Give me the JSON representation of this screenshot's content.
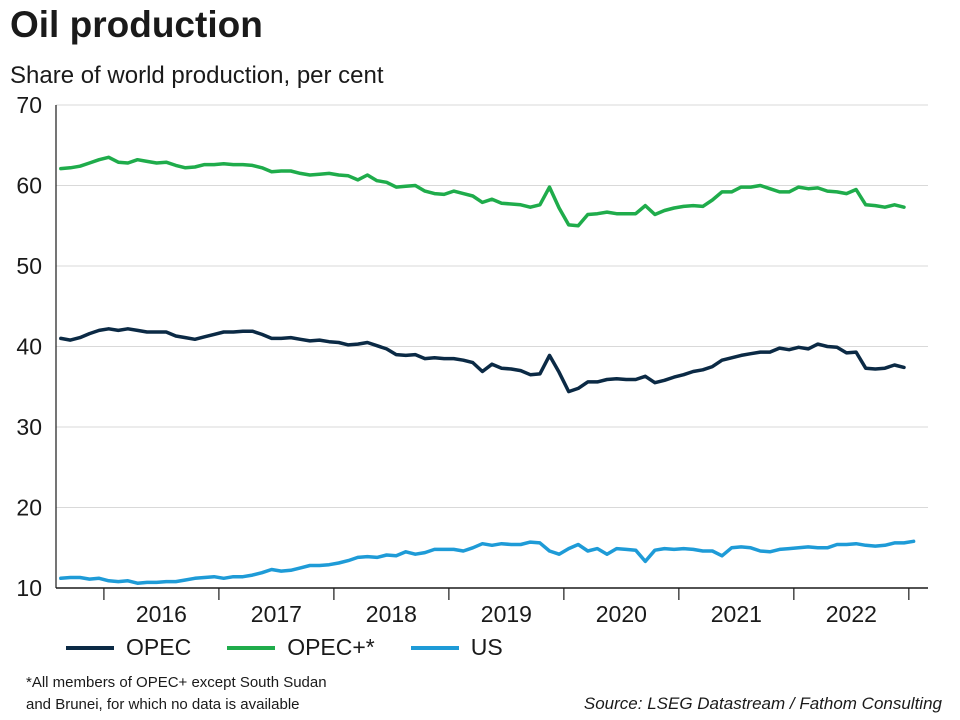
{
  "header": {
    "title": "Oil production",
    "subtitle": "Share of world production, per cent"
  },
  "legend": [
    {
      "label": "OPEC",
      "color": "#0b2a45"
    },
    {
      "label": "OPEC+*",
      "color": "#1fac4b"
    },
    {
      "label": "US",
      "color": "#1e9bd7"
    }
  ],
  "footnote": {
    "line1": "*All members of OPEC+ except South Sudan",
    "line2": "and Brunei, for which no data is available"
  },
  "source": "Source: LSEG Datastream / Fathom Consulting",
  "chart_data": {
    "type": "line",
    "title": "Oil production",
    "subtitle": "Share of world production, per cent",
    "x_start": "2015-08",
    "frequency": "monthly",
    "xlim": [
      "2015-08",
      "2023-02"
    ],
    "ylim": [
      10,
      70
    ],
    "yticks": [
      10,
      20,
      30,
      40,
      50,
      60,
      70
    ],
    "xtick_labels": [
      "2016",
      "2017",
      "2018",
      "2019",
      "2020",
      "2021",
      "2022"
    ],
    "grid": true,
    "legend_position": "bottom",
    "series": [
      {
        "name": "OPEC",
        "color": "#0b2a45",
        "values": [
          41.0,
          40.8,
          41.1,
          41.6,
          42.0,
          42.2,
          42.0,
          42.2,
          42.0,
          41.8,
          41.8,
          41.8,
          41.3,
          41.1,
          40.9,
          41.2,
          41.5,
          41.8,
          41.8,
          41.9,
          41.9,
          41.5,
          41.0,
          41.0,
          41.1,
          40.9,
          40.7,
          40.8,
          40.6,
          40.5,
          40.2,
          40.3,
          40.5,
          40.1,
          39.7,
          39.0,
          38.9,
          39.0,
          38.5,
          38.6,
          38.5,
          38.5,
          38.3,
          38.0,
          36.9,
          37.8,
          37.3,
          37.2,
          37.0,
          36.5,
          36.6,
          38.9,
          36.8,
          34.4,
          34.8,
          35.6,
          35.6,
          35.9,
          36.0,
          35.9,
          35.9,
          36.3,
          35.5,
          35.8,
          36.2,
          36.5,
          36.9,
          37.1,
          37.5,
          38.3,
          38.6,
          38.9,
          39.1,
          39.3,
          39.3,
          39.8,
          39.6,
          39.9,
          39.7,
          40.3,
          40.0,
          39.9,
          39.2,
          39.3,
          37.3,
          37.2,
          37.3,
          37.7,
          37.4
        ]
      },
      {
        "name": "OPEC+*",
        "color": "#1fac4b",
        "values": [
          62.1,
          62.2,
          62.4,
          62.8,
          63.2,
          63.5,
          62.9,
          62.8,
          63.2,
          63.0,
          62.8,
          62.9,
          62.5,
          62.2,
          62.3,
          62.6,
          62.6,
          62.7,
          62.6,
          62.6,
          62.5,
          62.2,
          61.7,
          61.8,
          61.8,
          61.5,
          61.3,
          61.4,
          61.5,
          61.3,
          61.2,
          60.7,
          61.3,
          60.6,
          60.4,
          59.8,
          59.9,
          60.0,
          59.3,
          59.0,
          58.9,
          59.3,
          59.0,
          58.7,
          57.9,
          58.3,
          57.8,
          57.7,
          57.6,
          57.3,
          57.6,
          59.8,
          57.2,
          55.1,
          55.0,
          56.4,
          56.5,
          56.7,
          56.5,
          56.5,
          56.5,
          57.5,
          56.4,
          56.9,
          57.2,
          57.4,
          57.5,
          57.4,
          58.2,
          59.2,
          59.2,
          59.8,
          59.8,
          60.0,
          59.6,
          59.2,
          59.2,
          59.8,
          59.6,
          59.7,
          59.3,
          59.2,
          59.0,
          59.5,
          57.6,
          57.5,
          57.3,
          57.6,
          57.3
        ]
      },
      {
        "name": "US",
        "color": "#1e9bd7",
        "values": [
          11.2,
          11.3,
          11.3,
          11.1,
          11.2,
          10.9,
          10.8,
          10.9,
          10.6,
          10.7,
          10.7,
          10.8,
          10.8,
          11.0,
          11.2,
          11.3,
          11.4,
          11.2,
          11.4,
          11.4,
          11.6,
          11.9,
          12.3,
          12.1,
          12.2,
          12.5,
          12.8,
          12.8,
          12.9,
          13.1,
          13.4,
          13.8,
          13.9,
          13.8,
          14.1,
          14.0,
          14.5,
          14.2,
          14.4,
          14.8,
          14.8,
          14.8,
          14.6,
          15.0,
          15.5,
          15.3,
          15.5,
          15.4,
          15.4,
          15.7,
          15.6,
          14.6,
          14.2,
          14.9,
          15.4,
          14.6,
          14.9,
          14.2,
          14.9,
          14.8,
          14.7,
          13.3,
          14.7,
          14.9,
          14.8,
          14.9,
          14.8,
          14.6,
          14.6,
          14.0,
          15.0,
          15.1,
          15.0,
          14.6,
          14.5,
          14.8,
          14.9,
          15.0,
          15.1,
          15.0,
          15.0,
          15.4,
          15.4,
          15.5,
          15.3,
          15.2,
          15.3,
          15.6,
          15.6,
          15.8
        ]
      }
    ]
  }
}
